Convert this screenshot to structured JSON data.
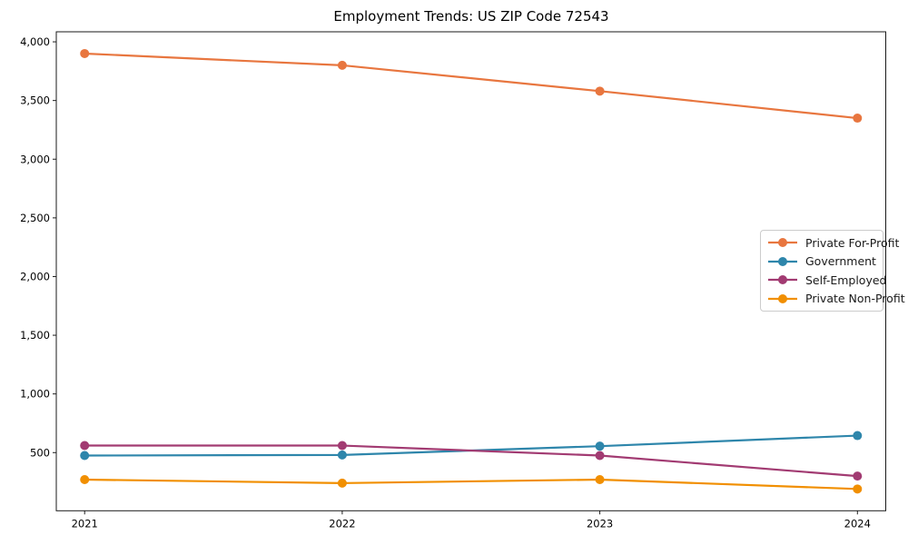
{
  "title": "Employment Trends: US ZIP Code 72543",
  "chart_data": {
    "type": "line",
    "title": "Employment Trends: US ZIP Code 72543",
    "xlabel": "",
    "ylabel": "",
    "x": [
      2021,
      2022,
      2023,
      2024
    ],
    "xtick_labels": [
      "2021",
      "2022",
      "2023",
      "2024"
    ],
    "series": [
      {
        "name": "Private For-Profit",
        "color": "#E8763F",
        "marker": "circle",
        "values": [
          3900,
          3800,
          3580,
          3350
        ]
      },
      {
        "name": "Government",
        "color": "#2E86AB",
        "marker": "circle",
        "values": [
          475,
          480,
          555,
          645
        ]
      },
      {
        "name": "Self-Employed",
        "color": "#A23B72",
        "marker": "circle",
        "values": [
          560,
          560,
          475,
          300
        ]
      },
      {
        "name": "Private Non-Profit",
        "color": "#F18F01",
        "marker": "circle",
        "values": [
          270,
          240,
          270,
          190
        ]
      }
    ],
    "yticks": [
      500,
      1000,
      1500,
      2000,
      2500,
      3000,
      3500,
      4000
    ],
    "ylim": [
      4.5,
      4085.5
    ],
    "xlim": [
      2020.89,
      2024.11
    ],
    "grid": false,
    "legend_position": "center-right",
    "axis_color": "#1a1a1a",
    "background_color": "#ffffff"
  }
}
